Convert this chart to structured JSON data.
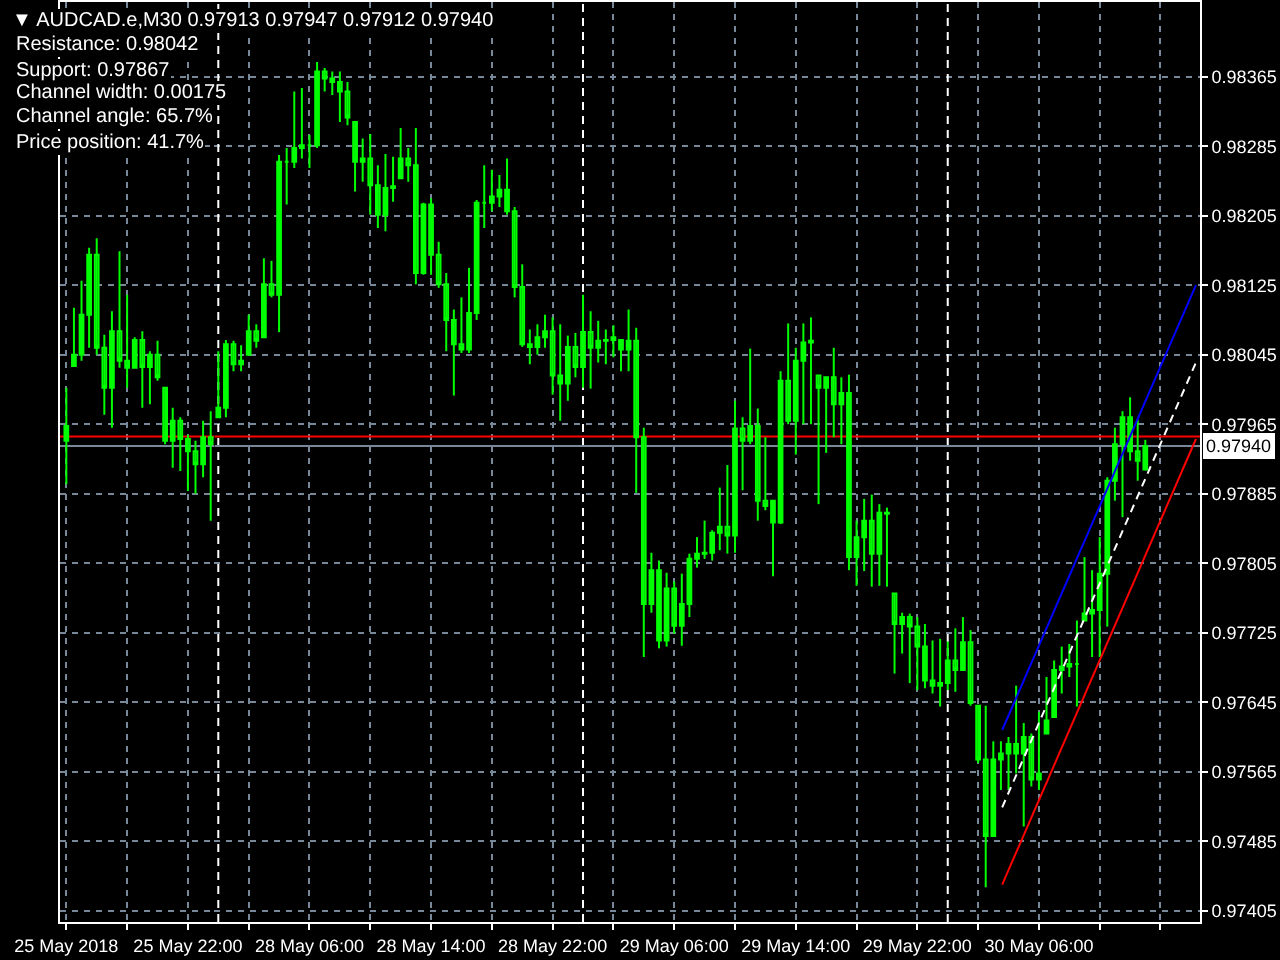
{
  "chart_data": [
    {
      "type": "candlestick",
      "title": "▼ AUDCAD.e,M30 0.97913 0.97947 0.97912 0.97940",
      "annotations": [
        "Resistance: 0.98042",
        "Support: 0.97867",
        "Channel width: 0.00175",
        "Channel angle: 65.7%",
        "Price position: 41.7%"
      ],
      "color": "#00ff00",
      "x": [
        "2018-05-25T14:00",
        "2018-05-25T14:30",
        "2018-05-25T15:00",
        "2018-05-25T15:30",
        "2018-05-25T16:00",
        "2018-05-25T16:30",
        "2018-05-25T17:00",
        "2018-05-25T17:30",
        "2018-05-25T18:00",
        "2018-05-25T18:30",
        "2018-05-25T19:00",
        "2018-05-25T19:30",
        "2018-05-25T20:00",
        "2018-05-25T20:30",
        "2018-05-25T21:00",
        "2018-05-25T21:30",
        "2018-05-25T22:00",
        "2018-05-25T22:30",
        "2018-05-25T23:00",
        "2018-05-25T23:30"
      ],
      "ohlc": [
        [
          0.97946,
          0.98007,
          0.97896,
          0.97963
        ],
        [
          0.98032,
          0.98099,
          0.98032,
          0.98045
        ],
        [
          0.98045,
          0.9813,
          0.98038,
          0.98091
        ],
        [
          0.98091,
          0.98168,
          0.98053,
          0.9816
        ],
        [
          0.9816,
          0.98179,
          0.98045,
          0.98053
        ],
        [
          0.98053,
          0.98068,
          0.97976,
          0.98007
        ],
        [
          0.98007,
          0.98095,
          0.97961,
          0.98072
        ],
        [
          0.98072,
          0.98164,
          0.9803,
          0.98038
        ],
        [
          0.98038,
          0.98114,
          0.98007,
          0.9803
        ],
        [
          0.9803,
          0.98065,
          0.9803,
          0.98062
        ],
        [
          0.98062,
          0.98072,
          0.97984,
          0.98031
        ],
        [
          0.98031,
          0.98049,
          0.97988,
          0.98045
        ],
        [
          0.98045,
          0.98061,
          0.98015,
          0.98019
        ],
        [
          0.98007,
          0.98007,
          0.97942,
          0.97946
        ],
        [
          0.97946,
          0.97984,
          0.97915,
          0.97969
        ],
        [
          0.97969,
          0.97973,
          0.97911,
          0.97948
        ],
        [
          0.97948,
          0.97953,
          0.97888,
          0.97934
        ],
        [
          0.97934,
          0.97946,
          0.97885,
          0.97919
        ],
        [
          0.97919,
          0.97969,
          0.97904,
          0.9795
        ],
        [
          0.9795,
          0.9798,
          0.97854,
          0.97942
        ]
      ],
      "xlim": [
        "2018-05-25T13:35",
        "2018-05-25T23:45"
      ],
      "xticks": [
        {
          "value": "2018-05-25T14:00",
          "label": "25 May 2018"
        },
        {
          "value": "2018-05-25T18:00",
          "label": null
        },
        {
          "value": "2018-05-25T22:00",
          "label": "25 May 22:00"
        }
      ],
      "ylim": [
        0.97392,
        0.98451
      ],
      "yticks": [
        0.97405,
        0.97485,
        0.97565,
        0.97645,
        0.97725,
        0.97805,
        0.97885,
        0.97965,
        0.98045,
        0.98125,
        0.98205,
        0.98285,
        0.98365
      ],
      "tick_labels": "x",
      "ref_lines": [
        {
          "axis": "y",
          "value": 0.97951,
          "color": "#ff0000"
        },
        {
          "axis": "y",
          "value": 0.9794,
          "color": "#778899"
        }
      ],
      "grid": true
    },
    {
      "type": "candlestick",
      "color": "#00ff00",
      "x": [
        "2018-05-28T00:00",
        "2018-05-28T00:30",
        "2018-05-28T01:00",
        "2018-05-28T01:30",
        "2018-05-28T02:00",
        "2018-05-28T02:30",
        "2018-05-28T03:00",
        "2018-05-28T03:30",
        "2018-05-28T04:00",
        "2018-05-28T04:30",
        "2018-05-28T05:00",
        "2018-05-28T05:30",
        "2018-05-28T06:00",
        "2018-05-28T06:30",
        "2018-05-28T07:00",
        "2018-05-28T07:30",
        "2018-05-28T08:00",
        "2018-05-28T08:30",
        "2018-05-28T09:00",
        "2018-05-28T09:30",
        "2018-05-28T10:00",
        "2018-05-28T10:30",
        "2018-05-28T11:00",
        "2018-05-28T11:30",
        "2018-05-28T12:00",
        "2018-05-28T12:30",
        "2018-05-28T13:00",
        "2018-05-28T13:30",
        "2018-05-28T14:00",
        "2018-05-28T14:30",
        "2018-05-28T15:00",
        "2018-05-28T15:30",
        "2018-05-28T16:00",
        "2018-05-28T16:30",
        "2018-05-28T17:00",
        "2018-05-28T17:30",
        "2018-05-28T18:00",
        "2018-05-28T18:30",
        "2018-05-28T19:00",
        "2018-05-28T19:30",
        "2018-05-28T20:00",
        "2018-05-28T20:30",
        "2018-05-28T21:00",
        "2018-05-28T21:30",
        "2018-05-28T22:00",
        "2018-05-28T22:30",
        "2018-05-28T23:00",
        "2018-05-28T23:30",
        "2018-05-29T00:00",
        "2018-05-29T00:30",
        "2018-05-29T01:00",
        "2018-05-29T01:30",
        "2018-05-29T02:00",
        "2018-05-29T02:30",
        "2018-05-29T03:00",
        "2018-05-29T03:30",
        "2018-05-29T04:00",
        "2018-05-29T04:30",
        "2018-05-29T05:00",
        "2018-05-29T05:30",
        "2018-05-29T06:00",
        "2018-05-29T06:30",
        "2018-05-29T07:00",
        "2018-05-29T07:30",
        "2018-05-29T08:00",
        "2018-05-29T08:30",
        "2018-05-29T09:00",
        "2018-05-29T09:30",
        "2018-05-29T10:00",
        "2018-05-29T10:30",
        "2018-05-29T11:00",
        "2018-05-29T11:30",
        "2018-05-29T12:00",
        "2018-05-29T12:30",
        "2018-05-29T13:00",
        "2018-05-29T13:30",
        "2018-05-29T14:00",
        "2018-05-29T14:30",
        "2018-05-29T15:00",
        "2018-05-29T15:30",
        "2018-05-29T16:00",
        "2018-05-29T16:30",
        "2018-05-29T17:00",
        "2018-05-29T17:30",
        "2018-05-29T18:00",
        "2018-05-29T18:30",
        "2018-05-29T19:00",
        "2018-05-29T19:30",
        "2018-05-29T20:00",
        "2018-05-29T20:30",
        "2018-05-29T21:00",
        "2018-05-29T21:30",
        "2018-05-29T22:00",
        "2018-05-29T22:30",
        "2018-05-29T23:00",
        "2018-05-29T23:30",
        "2018-05-30T00:00",
        "2018-05-30T00:30",
        "2018-05-30T01:00",
        "2018-05-30T01:30",
        "2018-05-30T02:00",
        "2018-05-30T02:30",
        "2018-05-30T03:00",
        "2018-05-30T03:30",
        "2018-05-30T04:00",
        "2018-05-30T04:30",
        "2018-05-30T05:00",
        "2018-05-30T05:30",
        "2018-05-30T06:00",
        "2018-05-30T06:30",
        "2018-05-30T07:00",
        "2018-05-30T07:30",
        "2018-05-30T08:00",
        "2018-05-30T08:30",
        "2018-05-30T09:00",
        "2018-05-30T09:30",
        "2018-05-30T10:00",
        "2018-05-30T10:30",
        "2018-05-30T11:00",
        "2018-05-30T11:30",
        "2018-05-30T12:00",
        "2018-05-30T12:30",
        "2018-05-30T13:00"
      ],
      "ohlc": [
        [
          0.97973,
          0.98049,
          0.97973,
          0.97984
        ],
        [
          0.97984,
          0.98062,
          0.97973,
          0.98057
        ],
        [
          0.98057,
          0.98061,
          0.98026,
          0.98034
        ],
        [
          0.98034,
          0.98056,
          0.98026,
          0.98038
        ],
        [
          0.98045,
          0.98091,
          0.98045,
          0.98072
        ],
        [
          0.98072,
          0.9808,
          0.98053,
          0.98061
        ],
        [
          0.98065,
          0.98156,
          0.98065,
          0.98126
        ],
        [
          0.98126,
          0.98153,
          0.98111,
          0.98114
        ],
        [
          0.98114,
          0.98275,
          0.98071,
          0.98267
        ],
        [
          0.98267,
          0.98283,
          0.98218,
          0.98267
        ],
        [
          0.98267,
          0.98348,
          0.9826,
          0.98283
        ],
        [
          0.98283,
          0.98352,
          0.98271,
          0.98286
        ],
        [
          0.98286,
          0.98298,
          0.9826,
          0.98286
        ],
        [
          0.98286,
          0.98382,
          0.98283,
          0.98371
        ],
        [
          0.98371,
          0.98375,
          0.98348,
          0.98363
        ],
        [
          0.98363,
          0.98371,
          0.98344,
          0.98359
        ],
        [
          0.98359,
          0.98371,
          0.98313,
          0.98348
        ],
        [
          0.98348,
          0.98359,
          0.98309,
          0.98318
        ],
        [
          0.98313,
          0.98313,
          0.98233,
          0.98267
        ],
        [
          0.98267,
          0.98294,
          0.98244,
          0.98271
        ],
        [
          0.98271,
          0.98299,
          0.98206,
          0.9824
        ],
        [
          0.9824,
          0.98263,
          0.98191,
          0.98206
        ],
        [
          0.98206,
          0.98276,
          0.98187,
          0.98237
        ],
        [
          0.98237,
          0.98273,
          0.98221,
          0.98239
        ],
        [
          0.98248,
          0.98306,
          0.98248,
          0.98271
        ],
        [
          0.98271,
          0.98283,
          0.98244,
          0.98263
        ],
        [
          0.98263,
          0.98306,
          0.98126,
          0.98139
        ],
        [
          0.98139,
          0.9822,
          0.98137,
          0.98218
        ],
        [
          0.98218,
          0.98225,
          0.98137,
          0.9816
        ],
        [
          0.9816,
          0.98175,
          0.98122,
          0.98126
        ],
        [
          0.98126,
          0.98139,
          0.98049,
          0.98085
        ],
        [
          0.98085,
          0.98097,
          0.97998,
          0.98057
        ],
        [
          0.98057,
          0.98111,
          0.98047,
          0.98051
        ],
        [
          0.98051,
          0.98145,
          0.98047,
          0.98093
        ],
        [
          0.98093,
          0.98223,
          0.98085,
          0.9822
        ],
        [
          0.9822,
          0.98263,
          0.98191,
          0.9822
        ],
        [
          0.9822,
          0.98258,
          0.9821,
          0.98227
        ],
        [
          0.98227,
          0.98252,
          0.98215,
          0.98235
        ],
        [
          0.98235,
          0.98271,
          0.98206,
          0.9821
        ],
        [
          0.9821,
          0.98215,
          0.98111,
          0.98123
        ],
        [
          0.98123,
          0.98149,
          0.98054,
          0.98057
        ],
        [
          0.98057,
          0.98074,
          0.98034,
          0.98054
        ],
        [
          0.98054,
          0.9808,
          0.98045,
          0.98065
        ],
        [
          0.98065,
          0.98091,
          0.98053,
          0.98072
        ],
        [
          0.98072,
          0.98088,
          0.97999,
          0.98021
        ],
        [
          0.98021,
          0.9808,
          0.97969,
          0.98012
        ],
        [
          0.98012,
          0.98067,
          0.97992,
          0.98054
        ],
        [
          0.98054,
          0.9807,
          0.98019,
          0.98031
        ],
        [
          0.98031,
          0.98114,
          0.98007,
          0.98071
        ],
        [
          0.98071,
          0.98095,
          0.98006,
          0.98053
        ],
        [
          0.98053,
          0.98084,
          0.98036,
          0.98061
        ],
        [
          0.98061,
          0.98074,
          0.98034,
          0.98062
        ],
        [
          0.98062,
          0.98079,
          0.98042,
          0.98065
        ],
        [
          0.98062,
          0.98062,
          0.98026,
          0.98051
        ],
        [
          0.98051,
          0.98097,
          0.98026,
          0.98061
        ],
        [
          0.98061,
          0.98076,
          0.97886,
          0.9795
        ],
        [
          0.9795,
          0.97961,
          0.97697,
          0.97758
        ],
        [
          0.97758,
          0.97817,
          0.97748,
          0.97797
        ],
        [
          0.97797,
          0.97808,
          0.97707,
          0.97716
        ],
        [
          0.97716,
          0.97794,
          0.97709,
          0.97776
        ],
        [
          0.97776,
          0.97784,
          0.97724,
          0.97733
        ],
        [
          0.97733,
          0.97793,
          0.9771,
          0.97758
        ],
        [
          0.97758,
          0.97816,
          0.97743,
          0.9781
        ],
        [
          0.9781,
          0.97835,
          0.978,
          0.97816
        ],
        [
          0.97816,
          0.97854,
          0.9781,
          0.97817
        ],
        [
          0.97817,
          0.97843,
          0.97808,
          0.9784
        ],
        [
          0.9784,
          0.97892,
          0.9782,
          0.97847
        ],
        [
          0.97847,
          0.97918,
          0.97816,
          0.97837
        ],
        [
          0.97837,
          0.97992,
          0.97817,
          0.9796
        ],
        [
          0.9796,
          0.97973,
          0.97889,
          0.97946
        ],
        [
          0.97946,
          0.98052,
          0.97942,
          0.97963
        ],
        [
          0.97963,
          0.97983,
          0.97854,
          0.97877
        ],
        [
          0.97877,
          0.9795,
          0.97866,
          0.97871
        ],
        [
          0.97877,
          0.97877,
          0.9779,
          0.97852
        ],
        [
          0.97852,
          0.98026,
          0.9785,
          0.98015
        ],
        [
          0.98015,
          0.98081,
          0.97965,
          0.97969
        ],
        [
          0.97969,
          0.98053,
          0.9793,
          0.98038
        ],
        [
          0.98038,
          0.98081,
          0.97965,
          0.98059
        ],
        [
          0.98059,
          0.98088,
          0.97965,
          0.98061
        ],
        [
          0.98021,
          0.98021,
          0.97873,
          0.98007
        ],
        [
          0.98007,
          0.98019,
          0.97932,
          0.98019
        ],
        [
          0.98019,
          0.98053,
          0.9795,
          0.97988
        ],
        [
          0.97988,
          0.98019,
          0.97942,
          0.98001
        ],
        [
          0.98001,
          0.98022,
          0.97797,
          0.97812
        ],
        [
          0.97812,
          0.97854,
          0.97779,
          0.97835
        ],
        [
          0.97835,
          0.97879,
          0.97796,
          0.97854
        ],
        [
          0.97854,
          0.97884,
          0.97778,
          0.97816
        ],
        [
          0.97816,
          0.97873,
          0.97779,
          0.97863
        ],
        [
          0.97863,
          0.97869,
          0.97778,
          0.97862
        ],
        [
          0.9777,
          0.9777,
          0.97678,
          0.97735
        ],
        [
          0.97735,
          0.97748,
          0.97701,
          0.97743
        ],
        [
          0.97743,
          0.97747,
          0.97667,
          0.97732
        ],
        [
          0.97732,
          0.97743,
          0.97659,
          0.97709
        ],
        [
          0.97709,
          0.97735,
          0.97661,
          0.9767
        ],
        [
          0.9767,
          0.97716,
          0.97655,
          0.97664
        ],
        [
          0.97664,
          0.97718,
          0.9764,
          0.97667
        ],
        [
          0.97667,
          0.97715,
          0.97659,
          0.97693
        ],
        [
          0.97693,
          0.9773,
          0.97657,
          0.97682
        ],
        [
          0.97682,
          0.97743,
          0.97682,
          0.97714
        ],
        [
          0.97714,
          0.97728,
          0.97641,
          0.97644
        ],
        [
          0.97641,
          0.97641,
          0.97575,
          0.97579
        ],
        [
          0.97579,
          0.97641,
          0.97432,
          0.97491
        ],
        [
          0.97491,
          0.976,
          0.97491,
          0.97579
        ],
        [
          0.97579,
          0.976,
          0.97544,
          0.97586
        ],
        [
          0.97586,
          0.97605,
          0.97544,
          0.97597
        ],
        [
          0.97597,
          0.97664,
          0.97563,
          0.97586
        ],
        [
          0.97586,
          0.97621,
          0.97502,
          0.97605
        ],
        [
          0.97605,
          0.97609,
          0.97548,
          0.97556
        ],
        [
          0.97556,
          0.97634,
          0.97544,
          0.97563
        ],
        [
          0.97609,
          0.97674,
          0.97609,
          0.97624
        ],
        [
          0.97628,
          0.97693,
          0.97628,
          0.97682
        ],
        [
          0.97682,
          0.97709,
          0.97655,
          0.97686
        ],
        [
          0.97686,
          0.97712,
          0.97674,
          0.97689
        ],
        [
          0.97689,
          0.97739,
          0.9764,
          0.97689
        ],
        [
          0.97739,
          0.97812,
          0.97739,
          0.97747
        ],
        [
          0.97747,
          0.97797,
          0.97697,
          0.97751
        ],
        [
          0.97751,
          0.97835,
          0.97697,
          0.97793
        ],
        [
          0.97793,
          0.97904,
          0.97732,
          0.979
        ],
        [
          0.979,
          0.97961,
          0.97877,
          0.97942
        ],
        [
          0.97942,
          0.9798,
          0.97858,
          0.97973
        ],
        [
          0.97973,
          0.97996,
          0.97923,
          0.97934
        ],
        [
          0.97934,
          0.9797,
          0.979,
          0.97923
        ],
        [
          0.97913,
          0.97947,
          0.97912,
          0.9794
        ]
      ],
      "series": [
        {
          "type": "line",
          "color": "#0000ff",
          "x": [
            "2018-05-30T03:35",
            "2018-05-30T16:20"
          ],
          "values": [
            0.97613,
            0.98125
          ]
        },
        {
          "type": "line",
          "color": "#ff0000",
          "x": [
            "2018-05-30T03:35",
            "2018-05-30T16:20"
          ],
          "values": [
            0.97435,
            0.97948
          ]
        },
        {
          "type": "line",
          "color": "#ffffff",
          "line_style": "dashed",
          "x": [
            "2018-05-30T03:35",
            "2018-05-30T16:20"
          ],
          "values": [
            0.97524,
            0.98036
          ]
        }
      ],
      "xlim": [
        "2018-05-27T23:45",
        "2018-05-30T16:36"
      ],
      "xticks": [
        {
          "value": "2018-05-28T02:00",
          "label": null
        },
        {
          "value": "2018-05-28T06:00",
          "label": "28 May 06:00"
        },
        {
          "value": "2018-05-28T10:00",
          "label": null
        },
        {
          "value": "2018-05-28T14:00",
          "label": "28 May 14:00"
        },
        {
          "value": "2018-05-28T18:00",
          "label": null
        },
        {
          "value": "2018-05-28T22:00",
          "label": "28 May 22:00"
        },
        {
          "value": "2018-05-29T02:00",
          "label": null
        },
        {
          "value": "2018-05-29T06:00",
          "label": "29 May 06:00"
        },
        {
          "value": "2018-05-29T10:00",
          "label": null
        },
        {
          "value": "2018-05-29T14:00",
          "label": "29 May 14:00"
        },
        {
          "value": "2018-05-29T18:00",
          "label": null
        },
        {
          "value": "2018-05-29T22:00",
          "label": "29 May 22:00"
        },
        {
          "value": "2018-05-30T02:00",
          "label": null
        },
        {
          "value": "2018-05-30T06:00",
          "label": "30 May 06:00"
        },
        {
          "value": "2018-05-30T10:00",
          "label": null
        },
        {
          "value": "2018-05-30T14:00",
          "label": null
        }
      ],
      "ylim": [
        0.97392,
        0.98451
      ],
      "yticks": [
        0.97405,
        0.97485,
        0.97565,
        0.97645,
        0.97725,
        0.97805,
        0.97885,
        0.97965,
        0.98045,
        0.98125,
        0.98205,
        0.98285,
        0.98365
      ],
      "ref_lines": [
        {
          "axis": "x",
          "value": "2018-05-28T00:00",
          "color": "#ffffff",
          "line_style": "dashed"
        },
        {
          "axis": "x",
          "value": "2018-05-29T00:00",
          "color": "#ffffff",
          "line_style": "dashed"
        },
        {
          "axis": "x",
          "value": "2018-05-30T00:00",
          "color": "#ffffff",
          "line_style": "dashed"
        },
        {
          "axis": "y",
          "value": 0.97951,
          "color": "#ff0000"
        },
        {
          "axis": "y",
          "value": 0.9794,
          "label": "0.97940",
          "color": "#778899"
        }
      ],
      "grid": true
    }
  ]
}
